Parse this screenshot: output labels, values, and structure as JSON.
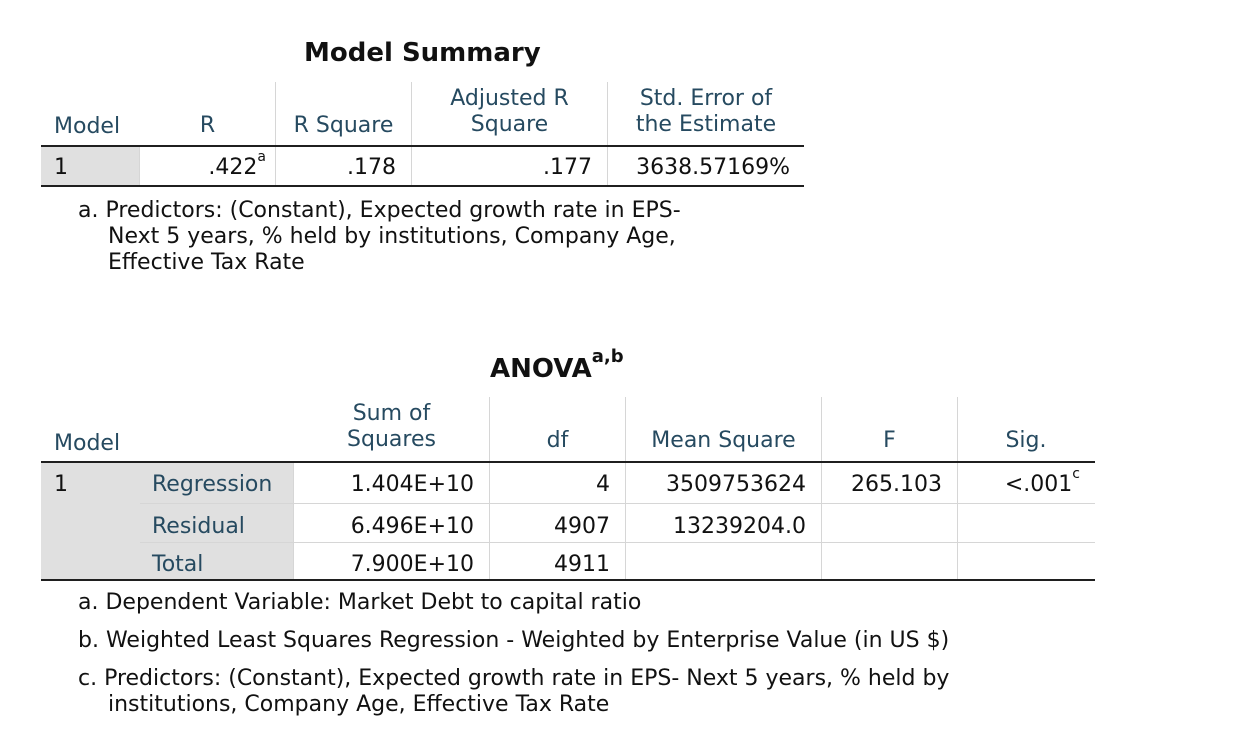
{
  "model_summary": {
    "title": "Model Summary",
    "headers": {
      "model": "Model",
      "r": "R",
      "r_square": "R Square",
      "adj_r_line1": "Adjusted R",
      "adj_r_line2": "Square",
      "std_err_line1": "Std. Error of",
      "std_err_line2": "the Estimate"
    },
    "row": {
      "model": "1",
      "r": ".422",
      "r_sup": "a",
      "r_square": ".178",
      "adj_r_square": ".177",
      "std_error": "3638.57169%"
    },
    "footnote_line1": "a. Predictors: (Constant), Expected growth rate in EPS-",
    "footnote_line2": "Next 5 years, % held by institutions, Company Age,",
    "footnote_line3": "Effective Tax Rate"
  },
  "anova": {
    "title": "ANOVA",
    "title_sup": "a,b",
    "headers": {
      "model": "Model",
      "sum_sq_line1": "Sum of",
      "sum_sq_line2": "Squares",
      "df": "df",
      "mean_square": "Mean Square",
      "f": "F",
      "sig": "Sig."
    },
    "model_number": "1",
    "rows": [
      {
        "label": "Regression",
        "sum_sq": "1.404E+10",
        "df": "4",
        "mean_square": "3509753624",
        "f": "265.103",
        "sig": "<.001",
        "sig_sup": "c"
      },
      {
        "label": "Residual",
        "sum_sq": "6.496E+10",
        "df": "4907",
        "mean_square": "13239204.0",
        "f": "",
        "sig": ""
      },
      {
        "label": "Total",
        "sum_sq": "7.900E+10",
        "df": "4911",
        "mean_square": "",
        "f": "",
        "sig": ""
      }
    ],
    "footnote_a": "a. Dependent Variable: Market Debt to capital ratio",
    "footnote_b": "b. Weighted Least Squares Regression - Weighted by Enterprise Value (in US $)",
    "footnote_c_line1": "c. Predictors: (Constant), Expected growth rate in EPS- Next 5 years, % held by",
    "footnote_c_line2": "institutions, Company Age, Effective Tax Rate"
  }
}
